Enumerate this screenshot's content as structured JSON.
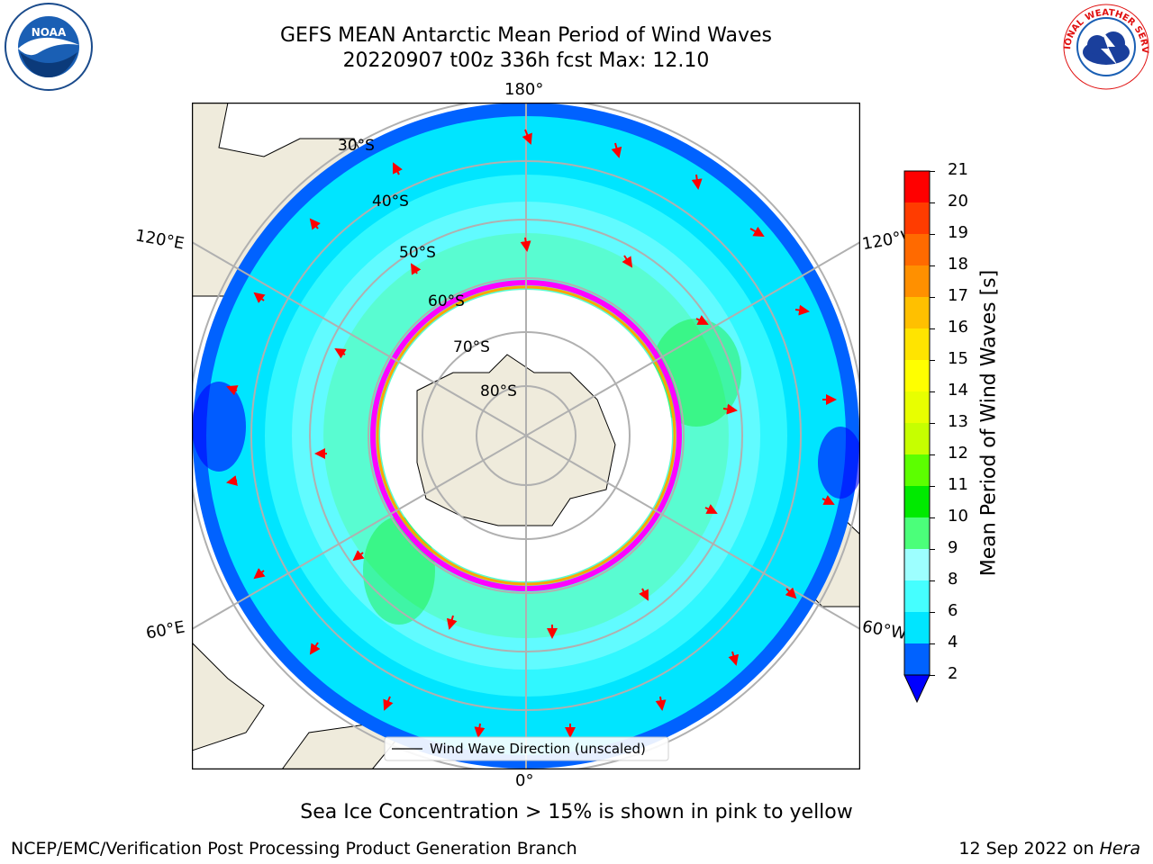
{
  "title": {
    "line1": "GEFS MEAN Antarctic Mean Period of Wind Waves",
    "line2": "20220907 t00z 336h fcst   Max: 12.10"
  },
  "map": {
    "projection": "south-polar-stereographic",
    "lon_labels": {
      "top": "180°",
      "bottom": "0°",
      "left_upper": "120°E",
      "left_lower": "60°E",
      "right_upper": "120°W",
      "right_lower": "60°W"
    },
    "lat_labels": [
      "30°S",
      "40°S",
      "50°S",
      "60°S",
      "70°S",
      "80°S"
    ],
    "legend": "Wind Wave Direction (unscaled)",
    "arrow_color": "#ff0000",
    "ice_colors": [
      "#ff00ff",
      "#ffa500",
      "#ffff00"
    ],
    "land_color": "#efebdc"
  },
  "colorbar": {
    "label": "Mean Period of Wind Waves [s]",
    "ticks": [
      "2",
      "4",
      "6",
      "8",
      "9",
      "10",
      "11",
      "12",
      "13",
      "14",
      "15",
      "16",
      "17",
      "18",
      "19",
      "20",
      "21"
    ],
    "colors": [
      "#0062ff",
      "#00e5ff",
      "#45ffff",
      "#9dffff",
      "#4bff7a",
      "#00ea00",
      "#5cff00",
      "#c6ff00",
      "#e8ff00",
      "#ffff00",
      "#ffe400",
      "#ffc000",
      "#ff9000",
      "#ff6a00",
      "#ff3c00",
      "#ff0000"
    ],
    "under_color": "#0000ff"
  },
  "caption": "Sea Ice Concentration > 15% is shown in pink to yellow",
  "footer": {
    "left": "NCEP/EMC/Verification Post Processing Product Generation Branch",
    "right_date": "12 Sep 2022 on ",
    "right_host": "Hera"
  },
  "logos": {
    "noaa": "NOAA",
    "nws": "NATIONAL WEATHER SERVICE"
  }
}
